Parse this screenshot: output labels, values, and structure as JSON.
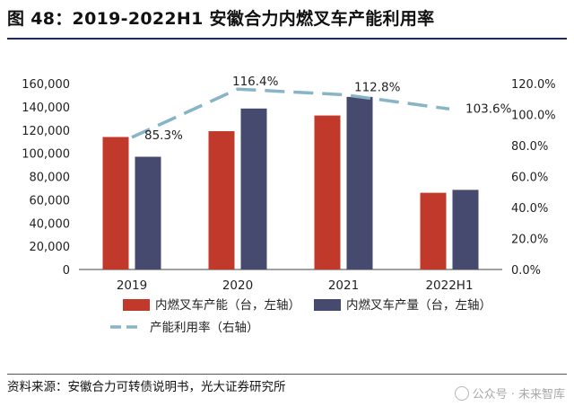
{
  "title": "图 48：2019-2022H1 安徽合力内燃叉车产能利用率",
  "source": "资料来源：安徽合力可转债说明书，光大证券研究所",
  "watermark": "公众号 · 未来智库",
  "chart_data": {
    "type": "bar",
    "categories": [
      "2019",
      "2020",
      "2021",
      "2022H1"
    ],
    "series": [
      {
        "name": "内燃叉车产能（台，左轴）",
        "type": "bar",
        "axis": "left",
        "color": "#c0392b",
        "values": [
          114000,
          119000,
          132500,
          66000
        ]
      },
      {
        "name": "内燃叉车产量（台，左轴）",
        "type": "bar",
        "axis": "left",
        "color": "#464a6e",
        "values": [
          97000,
          138500,
          148500,
          68500
        ]
      },
      {
        "name": "产能利用率（右轴）",
        "type": "line",
        "axis": "right",
        "color": "#88b4c8",
        "dash": true,
        "values": [
          85.3,
          116.4,
          112.8,
          103.6
        ],
        "labels": [
          "85.3%",
          "116.4%",
          "112.8%",
          "103.6%"
        ]
      }
    ],
    "y_left": {
      "min": 0,
      "max": 160000,
      "step": 20000,
      "ticks": [
        "0",
        "20,000",
        "40,000",
        "60,000",
        "80,000",
        "100,000",
        "120,000",
        "140,000",
        "160,000"
      ]
    },
    "y_right": {
      "min": 0,
      "max": 120,
      "step": 20,
      "ticks": [
        "0.0%",
        "20.0%",
        "40.0%",
        "60.0%",
        "80.0%",
        "100.0%",
        "120.0%"
      ]
    },
    "grid": false,
    "legend_position": "bottom"
  }
}
